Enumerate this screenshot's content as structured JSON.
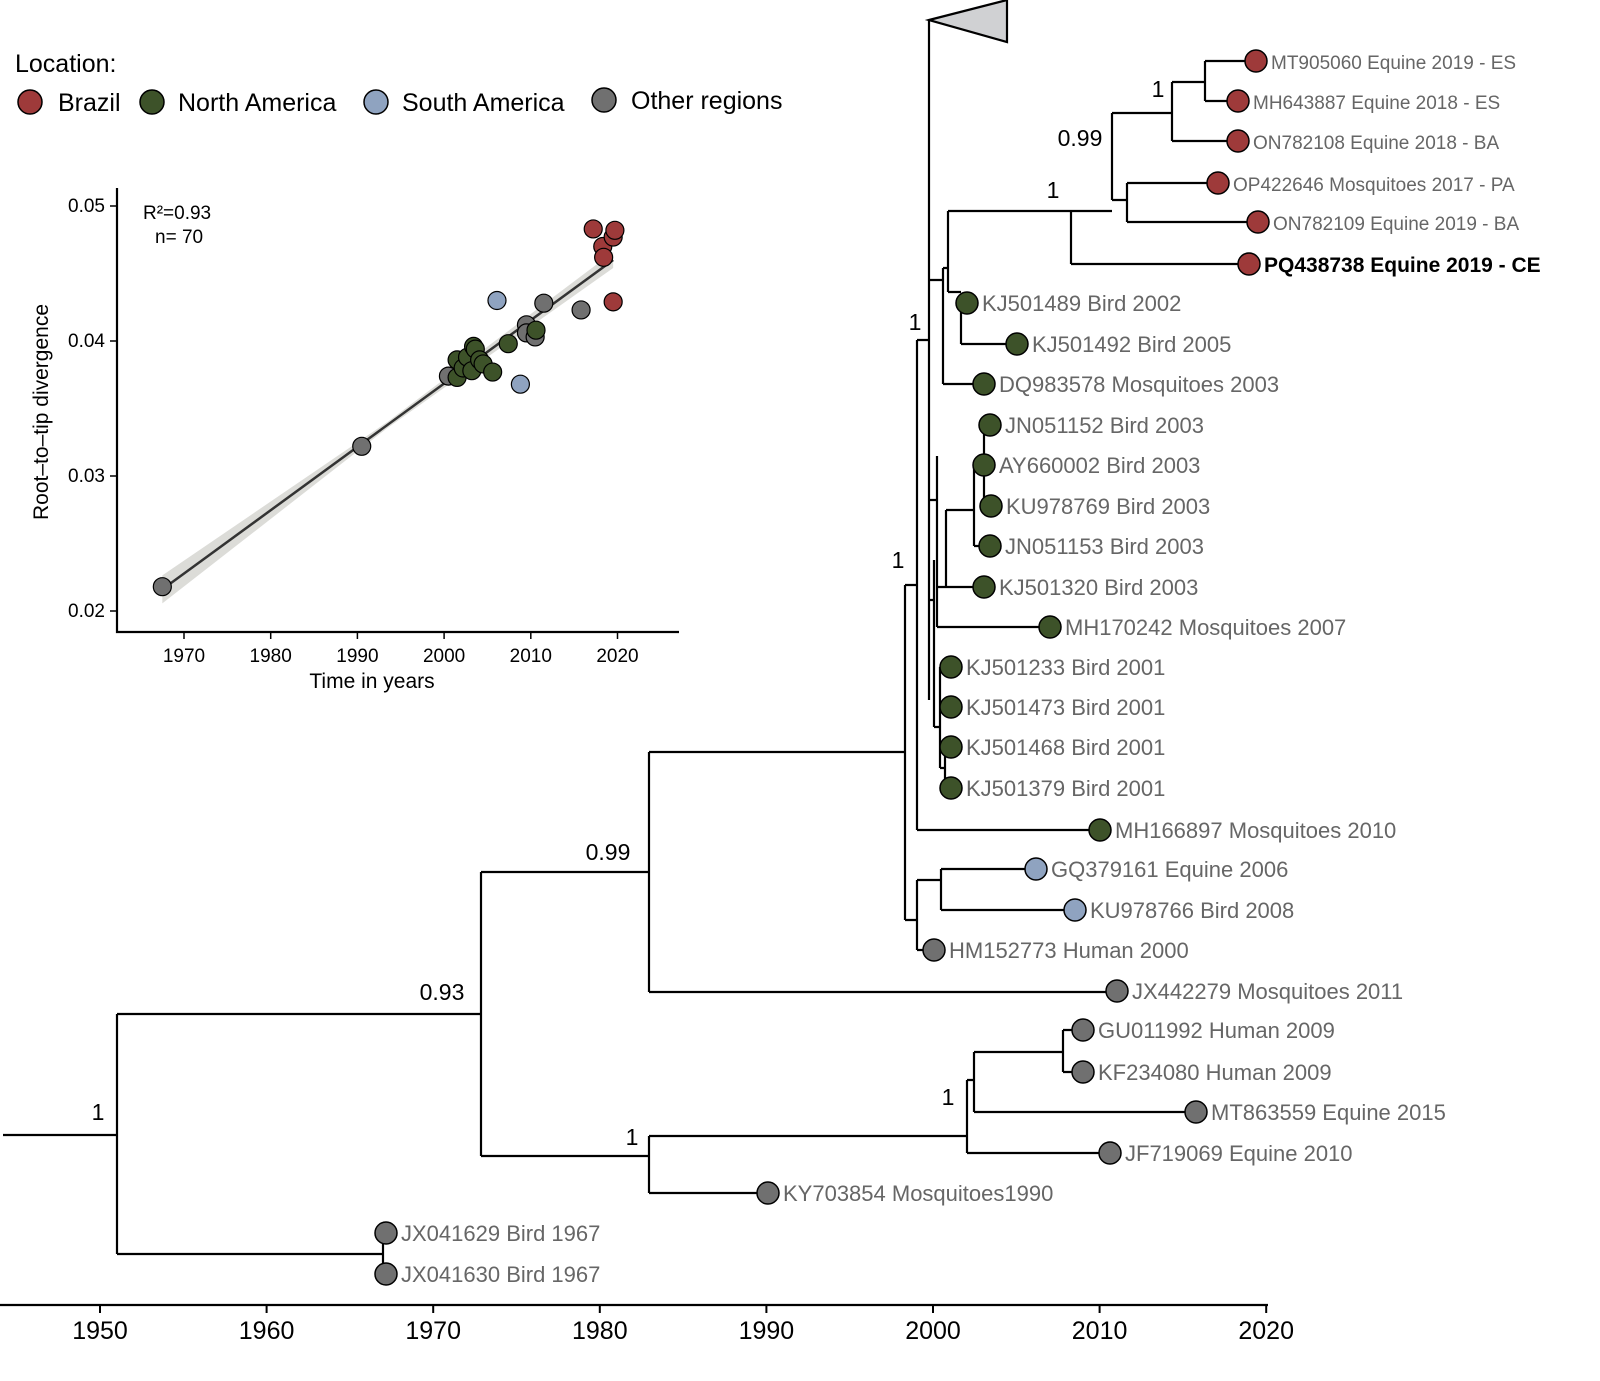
{
  "legend": {
    "title": "Location:",
    "items": [
      {
        "label": "Brazil",
        "color": "#9e3a3a"
      },
      {
        "label": "North America",
        "color": "#3d5229"
      },
      {
        "label": "South America",
        "color": "#8fa3c0"
      },
      {
        "label": "Other regions",
        "color": "#707070"
      }
    ]
  },
  "tree": {
    "time_axis": {
      "ticks": [
        "1950",
        "1960",
        "1970",
        "1980",
        "1990",
        "2000",
        "2010",
        "2020"
      ]
    },
    "support_values": [
      "1",
      "0.93",
      "0.99",
      "1",
      "1",
      "1",
      "1",
      "1",
      "0.99",
      "1"
    ],
    "collapsed_clade": "collapsed-triangle",
    "tips": [
      {
        "label": "MT905060 Equine 2019 - ES",
        "location": "Brazil"
      },
      {
        "label": "MH643887 Equine 2018 - ES",
        "location": "Brazil"
      },
      {
        "label": "ON782108 Equine 2018 - BA",
        "location": "Brazil"
      },
      {
        "label": "OP422646 Mosquitoes 2017 - PA",
        "location": "Brazil"
      },
      {
        "label": "ON782109 Equine 2019 - BA",
        "location": "Brazil"
      },
      {
        "label": "PQ438738 Equine 2019 - CE",
        "location": "Brazil",
        "highlighted": true
      },
      {
        "label": "KJ501489 Bird 2002",
        "location": "North America"
      },
      {
        "label": "KJ501492 Bird 2005",
        "location": "North America"
      },
      {
        "label": "DQ983578 Mosquitoes 2003",
        "location": "North America"
      },
      {
        "label": "JN051152 Bird 2003",
        "location": "North America"
      },
      {
        "label": "AY660002 Bird 2003",
        "location": "North America"
      },
      {
        "label": "KU978769 Bird 2003",
        "location": "North America"
      },
      {
        "label": "JN051153 Bird 2003",
        "location": "North America"
      },
      {
        "label": "KJ501320 Bird 2003",
        "location": "North America"
      },
      {
        "label": "MH170242 Mosquitoes 2007",
        "location": "North America"
      },
      {
        "label": "KJ501233 Bird 2001",
        "location": "North America"
      },
      {
        "label": "KJ501473 Bird 2001",
        "location": "North America"
      },
      {
        "label": "KJ501468 Bird 2001",
        "location": "North America"
      },
      {
        "label": "KJ501379 Bird 2001",
        "location": "North America"
      },
      {
        "label": "MH166897 Mosquitoes 2010",
        "location": "North America"
      },
      {
        "label": "GQ379161 Equine 2006",
        "location": "South America"
      },
      {
        "label": "KU978766 Bird 2008",
        "location": "South America"
      },
      {
        "label": "HM152773 Human 2000",
        "location": "Other regions"
      },
      {
        "label": "JX442279 Mosquitoes 2011",
        "location": "Other regions"
      },
      {
        "label": "GU011992 Human 2009",
        "location": "Other regions"
      },
      {
        "label": "KF234080 Human 2009",
        "location": "Other regions"
      },
      {
        "label": "MT863559 Equine 2015",
        "location": "Other regions"
      },
      {
        "label": "JF719069 Equine 2010",
        "location": "Other regions"
      },
      {
        "label": "KY703854 Mosquitoes1990",
        "location": "Other regions"
      },
      {
        "label": "JX041629 Bird 1967",
        "location": "Other regions"
      },
      {
        "label": "JX041630 Bird 1967",
        "location": "Other regions"
      }
    ]
  },
  "chart_data": {
    "type": "scatter",
    "xlabel": "Time in years",
    "ylabel": "Root–to–tip divergence",
    "annotation_r2": "R²=0.93",
    "annotation_n": "n= 70",
    "xlim": [
      1962,
      2027
    ],
    "ylim": [
      0.019,
      0.0515
    ],
    "x_ticks": [
      "1970",
      "1980",
      "1990",
      "2000",
      "2010",
      "2020"
    ],
    "y_ticks": [
      "0.02",
      "0.03",
      "0.04",
      "0.05"
    ],
    "grid": false,
    "regression_line": {
      "x": [
        1967.5,
        2019.5
      ],
      "y": [
        0.0216,
        0.046
      ],
      "confidence_band": true
    },
    "points": [
      {
        "x": 1967.5,
        "y": 0.0218,
        "location": "Other regions"
      },
      {
        "x": 1990.5,
        "y": 0.0322,
        "location": "Other regions"
      },
      {
        "x": 2000.5,
        "y": 0.0374,
        "location": "Other regions"
      },
      {
        "x": 2009.5,
        "y": 0.0412,
        "location": "Other regions"
      },
      {
        "x": 2009.5,
        "y": 0.0406,
        "location": "Other regions"
      },
      {
        "x": 2010.5,
        "y": 0.0403,
        "location": "Other regions"
      },
      {
        "x": 2011.5,
        "y": 0.0428,
        "location": "Other regions"
      },
      {
        "x": 2015.8,
        "y": 0.0423,
        "location": "Other regions"
      },
      {
        "x": 2006.1,
        "y": 0.043,
        "location": "South America"
      },
      {
        "x": 2008.8,
        "y": 0.0368,
        "location": "South America"
      },
      {
        "x": 2001.5,
        "y": 0.0386,
        "location": "North America"
      },
      {
        "x": 2001.5,
        "y": 0.0373,
        "location": "North America"
      },
      {
        "x": 2002.2,
        "y": 0.038,
        "location": "North America"
      },
      {
        "x": 2002.7,
        "y": 0.0388,
        "location": "North America"
      },
      {
        "x": 2003.2,
        "y": 0.0378,
        "location": "North America"
      },
      {
        "x": 2003.4,
        "y": 0.0396,
        "location": "North America"
      },
      {
        "x": 2003.6,
        "y": 0.0394,
        "location": "North America"
      },
      {
        "x": 2004.1,
        "y": 0.0386,
        "location": "North America"
      },
      {
        "x": 2004.5,
        "y": 0.0383,
        "location": "North America"
      },
      {
        "x": 2005.6,
        "y": 0.0377,
        "location": "North America"
      },
      {
        "x": 2007.4,
        "y": 0.0398,
        "location": "North America"
      },
      {
        "x": 2010.6,
        "y": 0.0408,
        "location": "North America"
      },
      {
        "x": 2017.2,
        "y": 0.0483,
        "location": "Brazil"
      },
      {
        "x": 2018.3,
        "y": 0.047,
        "location": "Brazil"
      },
      {
        "x": 2018.4,
        "y": 0.0462,
        "location": "Brazil"
      },
      {
        "x": 2019.5,
        "y": 0.0477,
        "location": "Brazil"
      },
      {
        "x": 2019.7,
        "y": 0.0482,
        "location": "Brazil"
      },
      {
        "x": 2019.5,
        "y": 0.0429,
        "location": "Brazil"
      }
    ]
  }
}
